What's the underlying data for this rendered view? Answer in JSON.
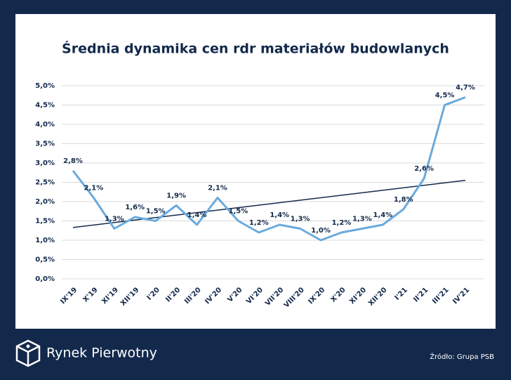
{
  "chart_data": {
    "type": "line",
    "title": "Średnia dynamika cen rdr materiałów budowlanych",
    "categories": [
      "IX'19",
      "X'19",
      "XI'19",
      "XII'19",
      "I'20",
      "II'20",
      "III'20",
      "IV'20",
      "V'20",
      "VI'20",
      "VII'20",
      "VIII'20",
      "IX'20",
      "X'20",
      "XI'20",
      "XII'20",
      "I'21",
      "II'21",
      "III'21",
      "IV'21"
    ],
    "series": [
      {
        "color": "#6aaadc",
        "values": [
          2.8,
          2.1,
          1.3,
          1.6,
          1.5,
          1.9,
          1.4,
          2.1,
          1.5,
          1.2,
          1.4,
          1.3,
          1.0,
          1.2,
          1.3,
          1.4,
          1.8,
          2.6,
          4.5,
          4.7
        ],
        "value_labels": [
          "2,8%",
          "2,1%",
          "1,3%",
          "1,6%",
          "1,5%",
          "1,9%",
          "1,4%",
          "2,1%",
          "1,5%",
          "1,2%",
          "1,4%",
          "1,3%",
          "1,0%",
          "1,2%",
          "1,3%",
          "1,4%",
          "1,8%",
          "2,6%",
          "4,5%",
          "4,7%"
        ]
      }
    ],
    "trend": {
      "color": "#13294b",
      "values": [
        1.33,
        2.55
      ]
    },
    "ylim": [
      0,
      5
    ],
    "yticks": [
      {
        "value": 0,
        "label": "0,0%"
      },
      {
        "value": 0.5,
        "label": "0,5%"
      },
      {
        "value": 1,
        "label": "1,0%"
      },
      {
        "value": 1.5,
        "label": "1,5%"
      },
      {
        "value": 2,
        "label": "2,0%"
      },
      {
        "value": 2.5,
        "label": "2,5%"
      },
      {
        "value": 3,
        "label": "3,0%"
      },
      {
        "value": 3.5,
        "label": "3,5%"
      },
      {
        "value": 4,
        "label": "4,0%"
      },
      {
        "value": 4.5,
        "label": "4,5%"
      },
      {
        "value": 5,
        "label": "5,0%"
      }
    ],
    "grid": true
  },
  "footer": {
    "brand": "Rynek Pierwotny",
    "source": "Źródło: Grupa PSB"
  }
}
